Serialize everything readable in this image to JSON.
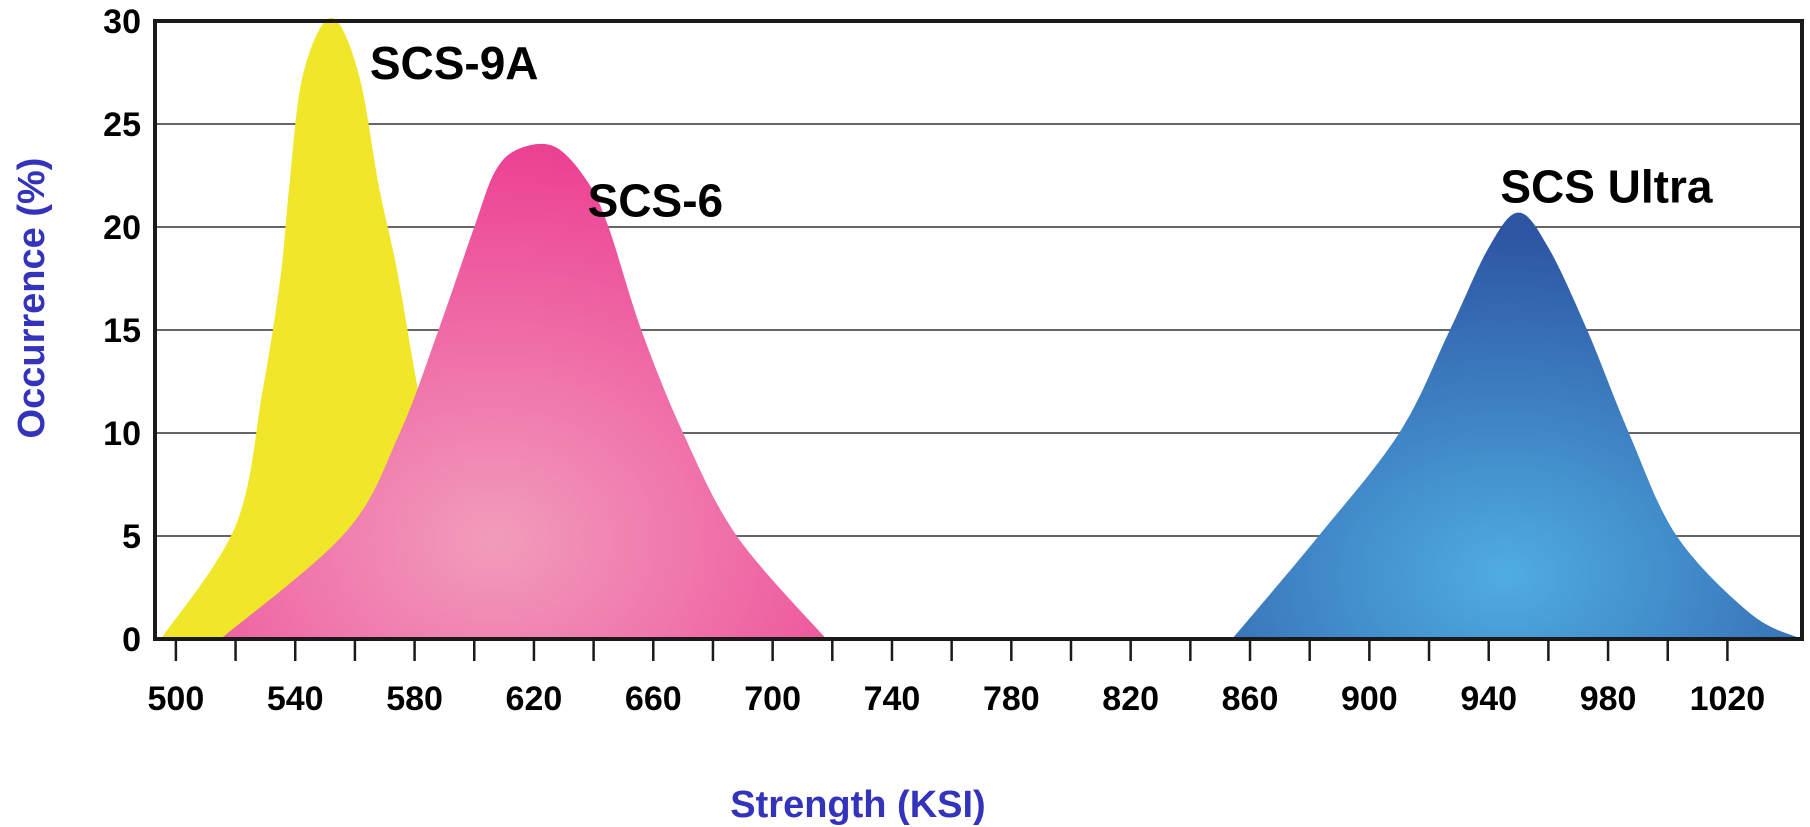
{
  "chart_data": {
    "type": "area",
    "title": "",
    "xlabel": "Strength (KSI)",
    "ylabel": "Occurrence (%)",
    "xlim": [
      493,
      1045
    ],
    "ylim": [
      0,
      30
    ],
    "x_ticks": [
      500,
      540,
      580,
      620,
      660,
      700,
      740,
      780,
      820,
      860,
      900,
      940,
      980,
      1020
    ],
    "y_ticks": [
      0,
      5,
      10,
      15,
      20,
      25,
      30
    ],
    "grid": "horizontal",
    "legend": "none",
    "axis_title_color": "#3333bb",
    "series": [
      {
        "name": "SCS-9A",
        "color_main": "#f0e62a",
        "color_light": "#f0e62a",
        "points": [
          [
            495,
            0
          ],
          [
            520,
            5.5
          ],
          [
            529,
            12
          ],
          [
            535,
            17.5
          ],
          [
            538,
            22
          ],
          [
            542,
            27
          ],
          [
            549,
            29.8
          ],
          [
            555,
            29.8
          ],
          [
            562,
            27
          ],
          [
            568,
            22
          ],
          [
            574,
            18
          ],
          [
            580,
            13
          ],
          [
            585,
            9
          ],
          [
            590,
            5
          ],
          [
            595,
            0
          ]
        ]
      },
      {
        "name": "SCS-6",
        "color_main": "#ec3a90",
        "color_light": "#f29cbc",
        "points": [
          [
            515,
            0
          ],
          [
            557,
            5.2
          ],
          [
            575,
            10
          ],
          [
            588,
            15
          ],
          [
            600,
            20
          ],
          [
            607,
            22.7
          ],
          [
            615,
            23.8
          ],
          [
            627,
            23.9
          ],
          [
            638,
            22.2
          ],
          [
            645,
            20
          ],
          [
            656,
            15
          ],
          [
            670,
            10
          ],
          [
            688,
            5
          ],
          [
            718,
            0
          ]
        ]
      },
      {
        "name": "SCS Ultra",
        "color_main": "#2d55a4",
        "color_light": "#4fade1",
        "points": [
          [
            854,
            0
          ],
          [
            883,
            5
          ],
          [
            910,
            10
          ],
          [
            927,
            15
          ],
          [
            940,
            19
          ],
          [
            950,
            20.7
          ],
          [
            960,
            19
          ],
          [
            973,
            15
          ],
          [
            987,
            10
          ],
          [
            1003,
            5
          ],
          [
            1028,
            1.2
          ],
          [
            1045,
            0
          ]
        ]
      }
    ]
  }
}
